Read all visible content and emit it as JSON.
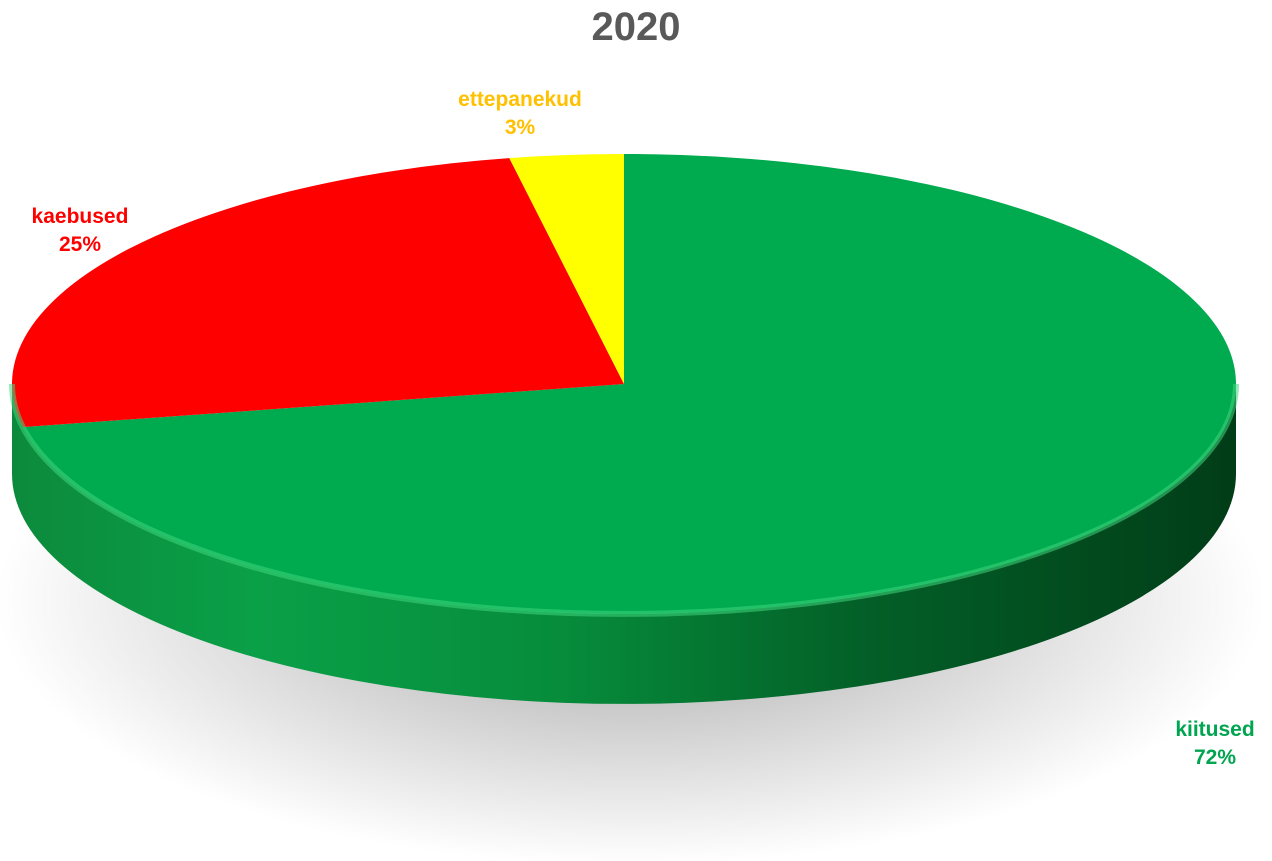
{
  "chart_data": {
    "type": "pie",
    "title": "2020",
    "slices": [
      {
        "label": "kiitused",
        "value": 72,
        "value_label": "72%",
        "color": "#00AA4F"
      },
      {
        "label": "kaebused",
        "value": 25,
        "value_label": "25%",
        "color": "#FF0000"
      },
      {
        "label": "ettepanekud",
        "value": 3,
        "value_label": "3%",
        "color": "#FFFF00"
      }
    ],
    "label_colors": {
      "kiitused": "#00A550",
      "kaebused": "#FF0000",
      "ettepanekud": "#FFC000"
    },
    "style": "3d",
    "legend": "none",
    "grid": false
  }
}
